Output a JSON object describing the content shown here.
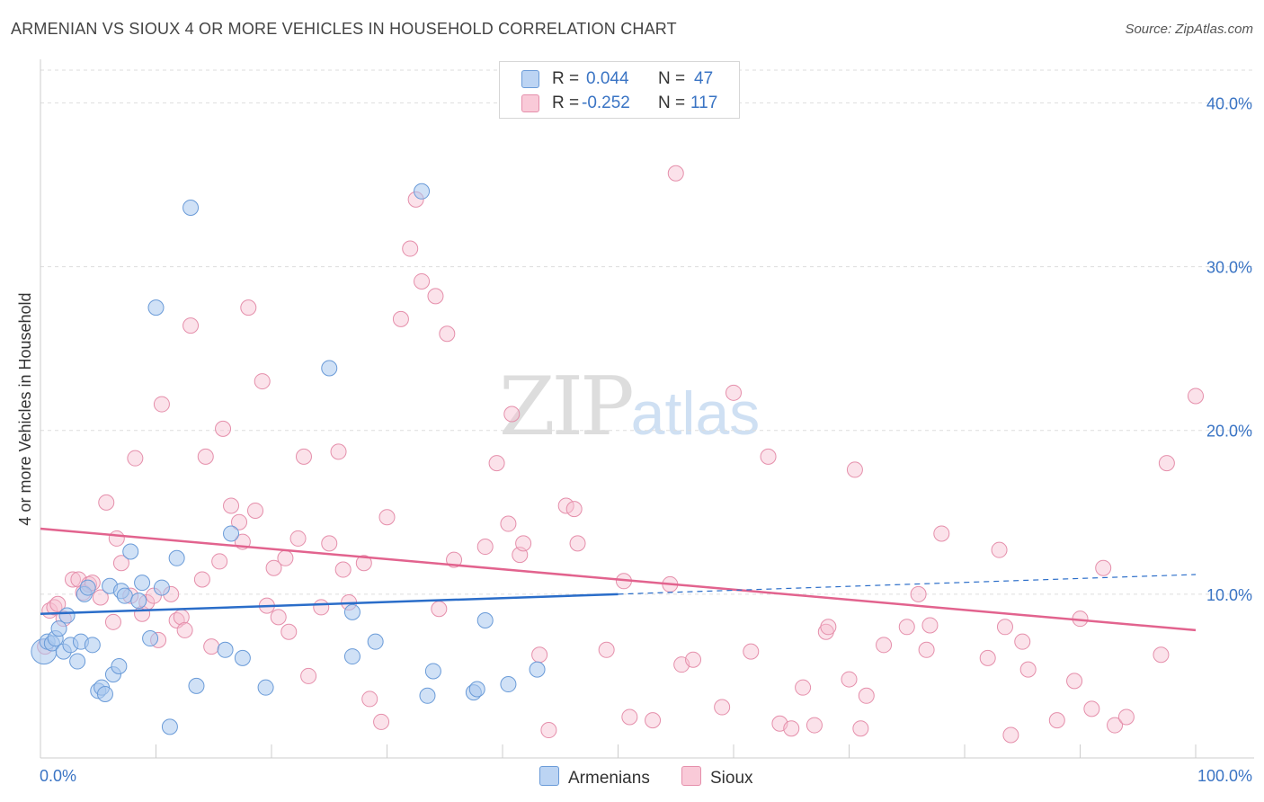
{
  "title": "ARMENIAN VS SIOUX 4 OR MORE VEHICLES IN HOUSEHOLD CORRELATION CHART",
  "source": "Source: ZipAtlas.com",
  "watermark": {
    "zip": "ZIP",
    "atlas": "atlas"
  },
  "legend": {
    "rows": [
      {
        "r_label": "R =",
        "r_value": "0.044",
        "n_label": "N =",
        "n_value": "47"
      },
      {
        "r_label": "R =",
        "r_value": "-0.252",
        "n_label": "N =",
        "n_value": "117"
      }
    ]
  },
  "bottom_legend": {
    "armenians": "Armenians",
    "sioux": "Sioux"
  },
  "colors": {
    "armenian_fill": "#a9c8ef",
    "armenian_stroke": "#6a9bd8",
    "armenian_line": "#2a6dc9",
    "sioux_fill": "#f6bfd0",
    "sioux_stroke": "#e58fab",
    "sioux_line": "#e2638e",
    "tick_label": "#3a74c4",
    "grid": "#dddddd"
  },
  "chart_data": {
    "type": "scatter",
    "title": "ARMENIAN VS SIOUX 4 OR MORE VEHICLES IN HOUSEHOLD CORRELATION CHART",
    "xlabel": "",
    "ylabel": "4 or more Vehicles in Household",
    "xlim": [
      0,
      100
    ],
    "ylim": [
      0,
      42
    ],
    "x_tick_labels": [
      "0.0%",
      "100.0%"
    ],
    "y_ticks": [
      10,
      20,
      30,
      40
    ],
    "y_tick_labels": [
      "10.0%",
      "20.0%",
      "30.0%",
      "40.0%"
    ],
    "series": [
      {
        "name": "Armenians",
        "r": 0.044,
        "n": 47,
        "trend": {
          "x0": 0,
          "y0": 8.8,
          "x1": 50,
          "y1": 10.0,
          "dash_x1": 100,
          "dash_y1": 11.2
        },
        "points": [
          [
            0.3,
            6.5
          ],
          [
            0.6,
            7.1
          ],
          [
            1.0,
            7.0
          ],
          [
            1.3,
            7.3
          ],
          [
            1.6,
            7.9
          ],
          [
            2.0,
            6.5
          ],
          [
            2.3,
            8.7
          ],
          [
            2.6,
            6.9
          ],
          [
            3.2,
            5.9
          ],
          [
            3.5,
            7.1
          ],
          [
            3.8,
            10.0
          ],
          [
            4.1,
            10.4
          ],
          [
            4.5,
            6.9
          ],
          [
            5.0,
            4.1
          ],
          [
            5.3,
            4.3
          ],
          [
            5.6,
            3.9
          ],
          [
            6.0,
            10.5
          ],
          [
            6.3,
            5.1
          ],
          [
            6.8,
            5.6
          ],
          [
            7.0,
            10.2
          ],
          [
            7.3,
            9.9
          ],
          [
            7.8,
            12.6
          ],
          [
            8.5,
            9.6
          ],
          [
            8.8,
            10.7
          ],
          [
            9.5,
            7.3
          ],
          [
            10.0,
            27.5
          ],
          [
            10.5,
            10.4
          ],
          [
            11.2,
            1.9
          ],
          [
            11.8,
            12.2
          ],
          [
            13.0,
            33.6
          ],
          [
            13.5,
            4.4
          ],
          [
            16.0,
            6.6
          ],
          [
            16.5,
            13.7
          ],
          [
            17.5,
            6.1
          ],
          [
            19.5,
            4.3
          ],
          [
            25.0,
            23.8
          ],
          [
            27.0,
            8.9
          ],
          [
            27.0,
            6.2
          ],
          [
            29.0,
            7.1
          ],
          [
            33.0,
            34.6
          ],
          [
            33.5,
            3.8
          ],
          [
            34.0,
            5.3
          ],
          [
            37.5,
            4.0
          ],
          [
            37.8,
            4.2
          ],
          [
            38.5,
            8.4
          ],
          [
            40.5,
            4.5
          ],
          [
            43.0,
            5.4
          ]
        ]
      },
      {
        "name": "Sioux",
        "r": -0.252,
        "n": 117,
        "trend": {
          "x0": 0,
          "y0": 14.0,
          "x1": 100,
          "y1": 7.8
        },
        "points": [
          [
            0.4,
            6.8
          ],
          [
            0.8,
            9.0
          ],
          [
            1.2,
            9.2
          ],
          [
            1.5,
            9.4
          ],
          [
            2.0,
            8.5
          ],
          [
            2.8,
            10.9
          ],
          [
            3.3,
            10.9
          ],
          [
            3.7,
            10.1
          ],
          [
            4.2,
            10.6
          ],
          [
            4.5,
            10.7
          ],
          [
            5.2,
            9.8
          ],
          [
            5.7,
            15.6
          ],
          [
            6.3,
            8.3
          ],
          [
            6.6,
            13.4
          ],
          [
            7.0,
            11.9
          ],
          [
            7.8,
            9.9
          ],
          [
            8.2,
            18.3
          ],
          [
            8.8,
            8.8
          ],
          [
            9.2,
            9.5
          ],
          [
            9.8,
            9.9
          ],
          [
            10.2,
            7.2
          ],
          [
            10.5,
            21.6
          ],
          [
            11.3,
            10.0
          ],
          [
            11.8,
            8.4
          ],
          [
            12.2,
            8.6
          ],
          [
            12.5,
            7.8
          ],
          [
            13.0,
            26.4
          ],
          [
            14.0,
            10.9
          ],
          [
            14.3,
            18.4
          ],
          [
            14.8,
            6.8
          ],
          [
            15.5,
            12.0
          ],
          [
            15.8,
            20.1
          ],
          [
            16.5,
            15.4
          ],
          [
            17.2,
            14.4
          ],
          [
            17.5,
            13.2
          ],
          [
            18.0,
            27.5
          ],
          [
            18.6,
            15.1
          ],
          [
            19.2,
            23.0
          ],
          [
            19.6,
            9.3
          ],
          [
            20.2,
            11.6
          ],
          [
            20.6,
            8.6
          ],
          [
            21.2,
            12.2
          ],
          [
            21.5,
            7.7
          ],
          [
            22.3,
            13.4
          ],
          [
            22.8,
            18.4
          ],
          [
            23.2,
            5.0
          ],
          [
            24.3,
            9.2
          ],
          [
            25.0,
            13.1
          ],
          [
            25.8,
            18.7
          ],
          [
            26.2,
            11.5
          ],
          [
            26.7,
            9.5
          ],
          [
            28.0,
            11.9
          ],
          [
            28.5,
            3.6
          ],
          [
            29.5,
            2.2
          ],
          [
            30.0,
            14.7
          ],
          [
            31.2,
            26.8
          ],
          [
            32.0,
            31.1
          ],
          [
            32.5,
            34.1
          ],
          [
            33.0,
            29.1
          ],
          [
            34.2,
            28.2
          ],
          [
            34.5,
            9.1
          ],
          [
            35.2,
            25.9
          ],
          [
            35.8,
            12.1
          ],
          [
            38.5,
            12.9
          ],
          [
            39.5,
            18.0
          ],
          [
            40.5,
            14.3
          ],
          [
            40.8,
            21.0
          ],
          [
            41.5,
            12.4
          ],
          [
            41.8,
            13.1
          ],
          [
            43.2,
            6.3
          ],
          [
            44.0,
            1.7
          ],
          [
            45.5,
            15.4
          ],
          [
            46.2,
            15.2
          ],
          [
            46.5,
            13.1
          ],
          [
            49.0,
            6.6
          ],
          [
            50.5,
            10.8
          ],
          [
            51.0,
            2.5
          ],
          [
            53.0,
            2.3
          ],
          [
            54.5,
            10.6
          ],
          [
            55.0,
            35.7
          ],
          [
            55.5,
            5.7
          ],
          [
            56.5,
            6.0
          ],
          [
            59.0,
            3.1
          ],
          [
            60.0,
            22.3
          ],
          [
            61.5,
            6.5
          ],
          [
            63.0,
            18.4
          ],
          [
            64.0,
            2.1
          ],
          [
            65.0,
            1.8
          ],
          [
            66.0,
            4.3
          ],
          [
            67.0,
            2.0
          ],
          [
            68.0,
            7.7
          ],
          [
            68.2,
            8.0
          ],
          [
            70.0,
            4.8
          ],
          [
            70.5,
            17.6
          ],
          [
            71.0,
            1.8
          ],
          [
            71.5,
            3.8
          ],
          [
            73.0,
            6.9
          ],
          [
            75.0,
            8.0
          ],
          [
            76.0,
            10.0
          ],
          [
            76.7,
            6.6
          ],
          [
            77.0,
            8.1
          ],
          [
            78.0,
            13.7
          ],
          [
            82.0,
            6.1
          ],
          [
            83.0,
            12.7
          ],
          [
            83.5,
            8.0
          ],
          [
            84.0,
            1.4
          ],
          [
            85.0,
            7.1
          ],
          [
            85.5,
            5.4
          ],
          [
            88.0,
            2.3
          ],
          [
            89.5,
            4.7
          ],
          [
            90.0,
            8.5
          ],
          [
            91.0,
            3.0
          ],
          [
            92.0,
            11.6
          ],
          [
            93.0,
            2.0
          ],
          [
            94.0,
            2.5
          ],
          [
            97.0,
            6.3
          ],
          [
            97.5,
            18.0
          ],
          [
            100.0,
            22.1
          ]
        ]
      }
    ]
  }
}
